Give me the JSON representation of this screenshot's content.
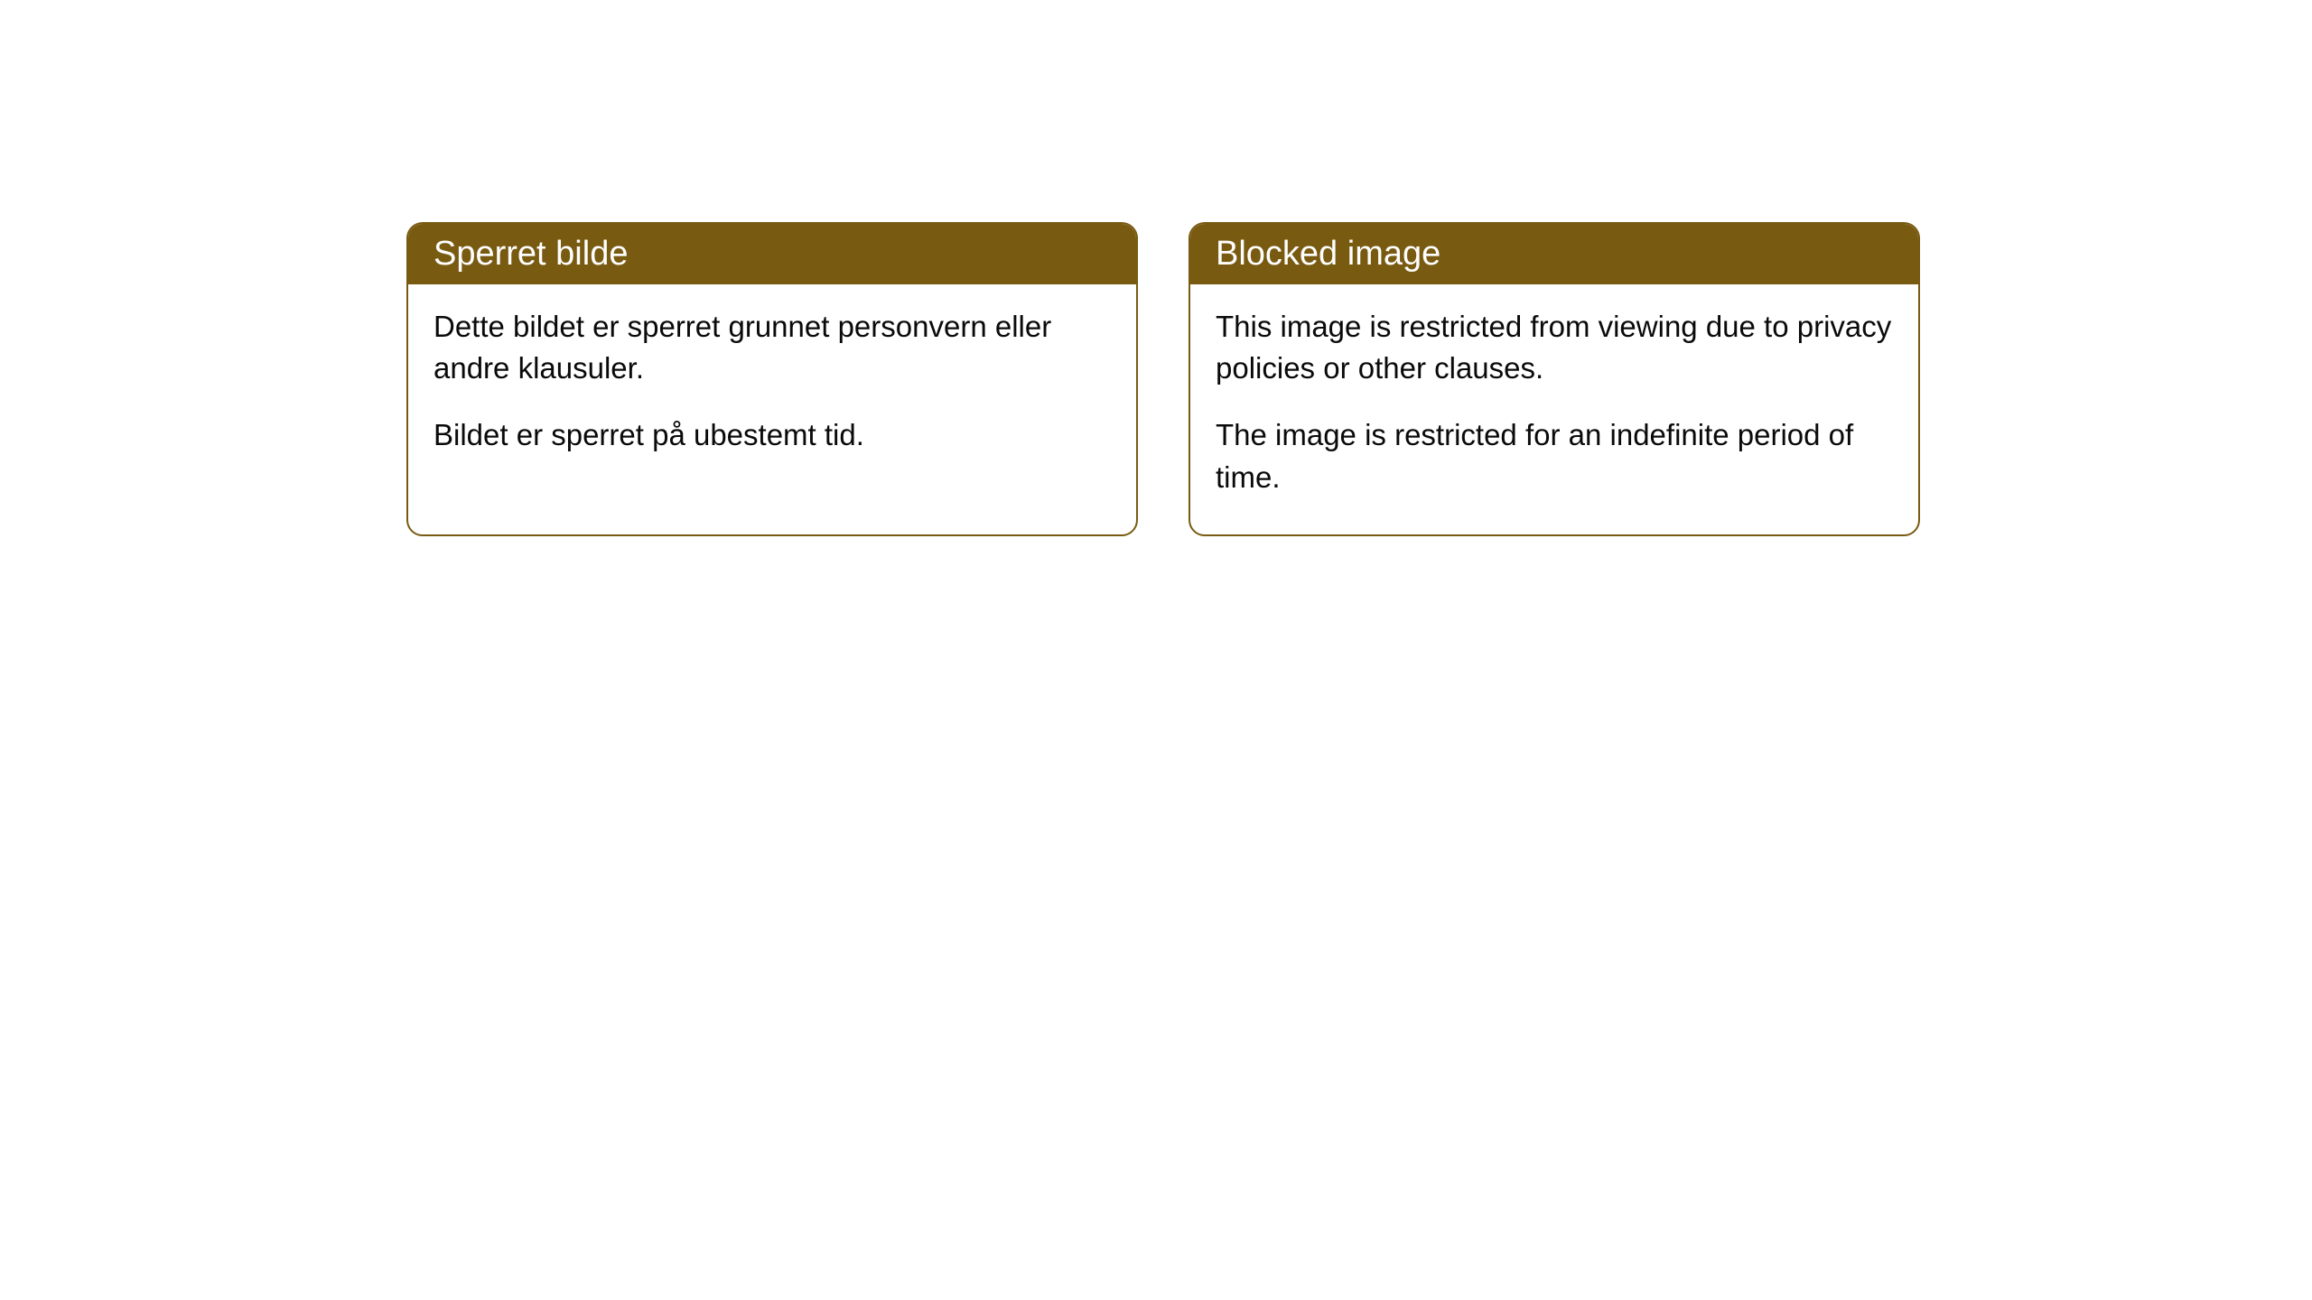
{
  "cards": [
    {
      "title": "Sperret bilde",
      "paragraph1": "Dette bildet er sperret grunnet personvern eller andre klausuler.",
      "paragraph2": "Bildet er sperret på ubestemt tid."
    },
    {
      "title": "Blocked image",
      "paragraph1": "This image is restricted from viewing due to privacy policies or other clauses.",
      "paragraph2": "The image is restricted for an indefinite period of time."
    }
  ],
  "style": {
    "header_bg_color": "#795a11",
    "header_text_color": "#ffffff",
    "border_color": "#795a11",
    "body_bg_color": "#ffffff",
    "body_text_color": "#0a0a0a",
    "border_radius": 18,
    "header_fontsize": 38,
    "body_fontsize": 33
  }
}
